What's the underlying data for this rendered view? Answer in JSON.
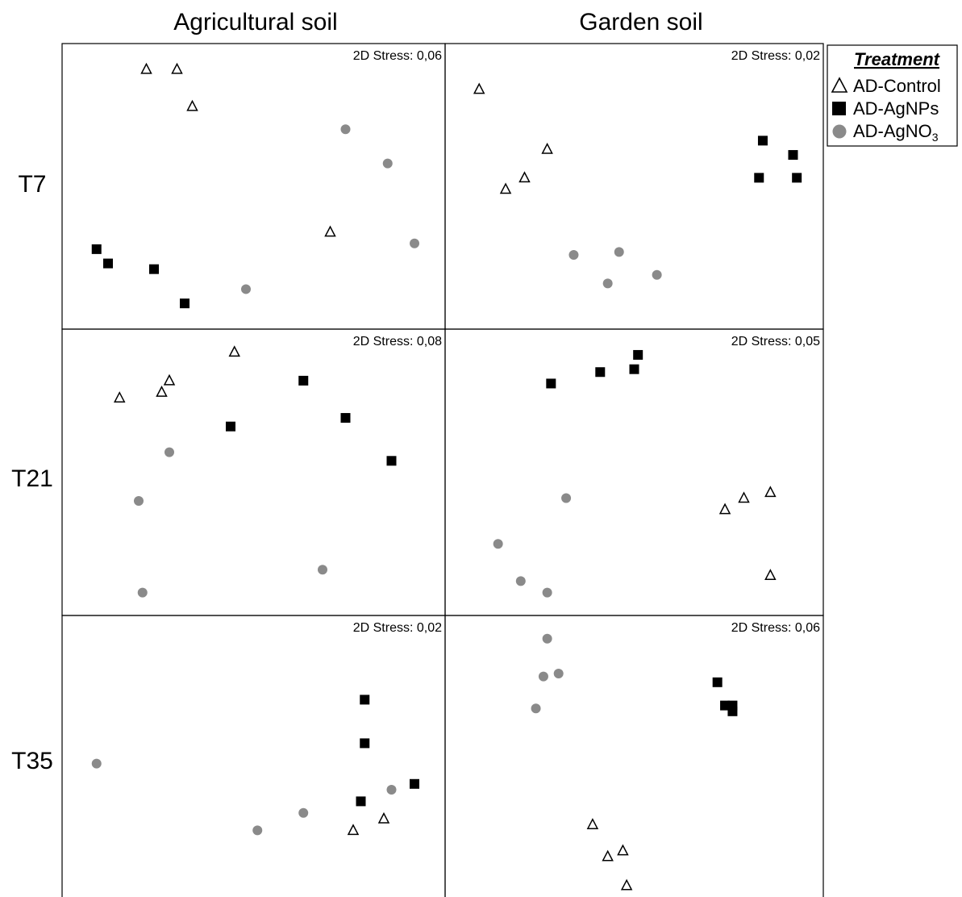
{
  "columns": [
    "Agricultural soil",
    "Garden soil"
  ],
  "rows": [
    "T7",
    "T21",
    "T35"
  ],
  "legend": {
    "title": "Treatment",
    "items": [
      {
        "key": "control",
        "label": "AD-Control",
        "marker": "open-triangle",
        "color": "#000000"
      },
      {
        "key": "agnps",
        "label": "AD-AgNPs",
        "marker": "filled-square",
        "color": "#000000"
      },
      {
        "key": "agno3",
        "label": "AD-AgNO",
        "subscript": "3",
        "marker": "filled-circle",
        "color": "#8a8a8a"
      }
    ]
  },
  "chart_data": [
    {
      "type": "scatter",
      "row": "T7",
      "column": "Agricultural soil",
      "annotation": "2D Stress: 0,06",
      "series": [
        {
          "key": "control",
          "points": [
            [
              0.22,
              0.91
            ],
            [
              0.3,
              0.91
            ],
            [
              0.34,
              0.78
            ],
            [
              0.7,
              0.34
            ]
          ]
        },
        {
          "key": "agnps",
          "points": [
            [
              0.09,
              0.28
            ],
            [
              0.12,
              0.23
            ],
            [
              0.24,
              0.21
            ],
            [
              0.32,
              0.09
            ]
          ]
        },
        {
          "key": "agno3",
          "points": [
            [
              0.74,
              0.7
            ],
            [
              0.85,
              0.58
            ],
            [
              0.92,
              0.3
            ],
            [
              0.48,
              0.14
            ]
          ]
        }
      ]
    },
    {
      "type": "scatter",
      "row": "T7",
      "column": "Garden soil",
      "annotation": "2D Stress: 0,02",
      "series": [
        {
          "key": "control",
          "points": [
            [
              0.09,
              0.84
            ],
            [
              0.27,
              0.63
            ],
            [
              0.21,
              0.53
            ],
            [
              0.16,
              0.49
            ]
          ]
        },
        {
          "key": "agnps",
          "points": [
            [
              0.84,
              0.66
            ],
            [
              0.92,
              0.61
            ],
            [
              0.83,
              0.53
            ],
            [
              0.93,
              0.53
            ]
          ]
        },
        {
          "key": "agno3",
          "points": [
            [
              0.34,
              0.26
            ],
            [
              0.46,
              0.27
            ],
            [
              0.43,
              0.16
            ],
            [
              0.56,
              0.19
            ]
          ]
        }
      ]
    },
    {
      "type": "scatter",
      "row": "T21",
      "column": "Agricultural soil",
      "annotation": "2D Stress: 0,08",
      "series": [
        {
          "key": "control",
          "points": [
            [
              0.45,
              0.92
            ],
            [
              0.28,
              0.82
            ],
            [
              0.26,
              0.78
            ],
            [
              0.15,
              0.76
            ]
          ]
        },
        {
          "key": "agnps",
          "points": [
            [
              0.63,
              0.82
            ],
            [
              0.74,
              0.69
            ],
            [
              0.44,
              0.66
            ],
            [
              0.86,
              0.54
            ]
          ]
        },
        {
          "key": "agno3",
          "points": [
            [
              0.28,
              0.57
            ],
            [
              0.2,
              0.4
            ],
            [
              0.68,
              0.16
            ],
            [
              0.21,
              0.08
            ]
          ]
        }
      ]
    },
    {
      "type": "scatter",
      "row": "T21",
      "column": "Garden soil",
      "annotation": "2D Stress: 0,05",
      "series": [
        {
          "key": "control",
          "points": [
            [
              0.86,
              0.43
            ],
            [
              0.79,
              0.41
            ],
            [
              0.74,
              0.37
            ],
            [
              0.86,
              0.14
            ]
          ]
        },
        {
          "key": "agnps",
          "points": [
            [
              0.51,
              0.91
            ],
            [
              0.5,
              0.86
            ],
            [
              0.41,
              0.85
            ],
            [
              0.28,
              0.81
            ]
          ]
        },
        {
          "key": "agno3",
          "points": [
            [
              0.32,
              0.41
            ],
            [
              0.14,
              0.25
            ],
            [
              0.2,
              0.12
            ],
            [
              0.27,
              0.08
            ]
          ]
        }
      ]
    },
    {
      "type": "scatter",
      "row": "T35",
      "column": "Agricultural soil",
      "annotation": "2D Stress: 0,02",
      "series": [
        {
          "key": "control",
          "points": [
            [
              0.84,
              0.3
            ],
            [
              0.76,
              0.26
            ]
          ]
        },
        {
          "key": "agnps",
          "points": [
            [
              0.79,
              0.71
            ],
            [
              0.79,
              0.56
            ],
            [
              0.92,
              0.42
            ],
            [
              0.78,
              0.36
            ]
          ]
        },
        {
          "key": "agno3",
          "points": [
            [
              0.09,
              0.49
            ],
            [
              0.86,
              0.4
            ],
            [
              0.63,
              0.32
            ],
            [
              0.51,
              0.26
            ]
          ]
        }
      ]
    },
    {
      "type": "scatter",
      "row": "T35",
      "column": "Garden soil",
      "annotation": "2D Stress: 0,06",
      "series": [
        {
          "key": "control",
          "points": [
            [
              0.39,
              0.28
            ],
            [
              0.47,
              0.19
            ],
            [
              0.43,
              0.17
            ],
            [
              0.48,
              0.07
            ]
          ]
        },
        {
          "key": "agnps",
          "points": [
            [
              0.72,
              0.77
            ],
            [
              0.74,
              0.69
            ],
            [
              0.76,
              0.69
            ],
            [
              0.76,
              0.67
            ]
          ]
        },
        {
          "key": "agno3",
          "points": [
            [
              0.27,
              0.92
            ],
            [
              0.3,
              0.8
            ],
            [
              0.26,
              0.79
            ],
            [
              0.24,
              0.68
            ]
          ]
        }
      ]
    }
  ]
}
